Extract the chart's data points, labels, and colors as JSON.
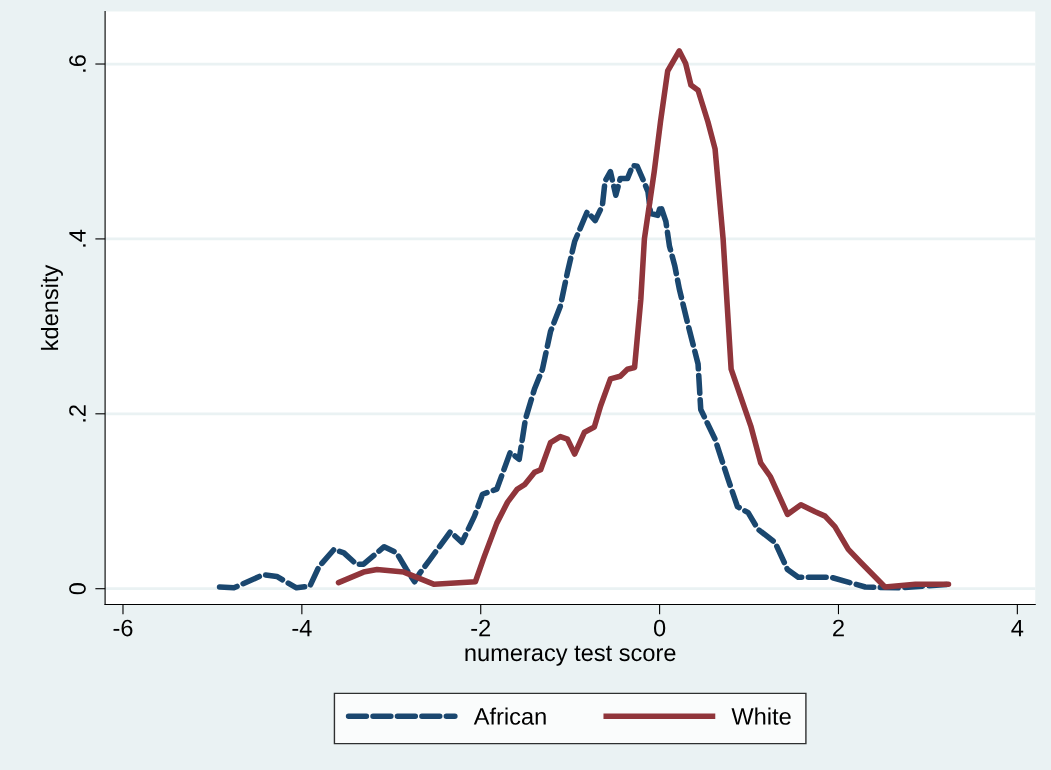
{
  "chart_data": {
    "type": "line",
    "xlabel": "numeracy test score",
    "ylabel": "kdensity",
    "xlim": [
      -6.2,
      4.2
    ],
    "xticks": [
      -6,
      -4,
      -2,
      0,
      2,
      4
    ],
    "ylim": [
      -0.018,
      0.66
    ],
    "yticks": [
      {
        "value": 0,
        "label": "0"
      },
      {
        "value": 0.2,
        "label": ".2"
      },
      {
        "value": 0.4,
        "label": ".4"
      },
      {
        "value": 0.6,
        "label": ".6"
      }
    ],
    "grid": "y",
    "legend": "bottom",
    "series": [
      {
        "name": "African",
        "color": "#1a476f",
        "line_style": "dashed",
        "x": [
          -4.92,
          -4.76,
          -4.43,
          -4.28,
          -4.06,
          -3.91,
          -3.81,
          -3.64,
          -3.53,
          -3.39,
          -3.31,
          -3.08,
          -2.94,
          -2.83,
          -2.74,
          -2.68,
          -2.57,
          -2.34,
          -2.21,
          -2.07,
          -1.98,
          -1.82,
          -1.67,
          -1.57,
          -1.5,
          -1.4,
          -1.31,
          -1.22,
          -1.11,
          -1.03,
          -0.95,
          -0.81,
          -0.72,
          -0.64,
          -0.61,
          -0.55,
          -0.49,
          -0.44,
          -0.36,
          -0.3,
          -0.25,
          -0.19,
          -0.13,
          -0.1,
          -0.02,
          0.01,
          0.07,
          0.11,
          0.17,
          0.22,
          0.31,
          0.43,
          0.46,
          0.62,
          0.76,
          0.87,
          0.99,
          1.1,
          1.29,
          1.43,
          1.55,
          1.92,
          2.3,
          2.67,
          3.23
        ],
        "values": [
          0.002,
          0.001,
          0.016,
          0.014,
          0.001,
          0.003,
          0.025,
          0.045,
          0.041,
          0.028,
          0.028,
          0.048,
          0.041,
          0.022,
          0.008,
          0.018,
          0.033,
          0.065,
          0.053,
          0.083,
          0.108,
          0.114,
          0.156,
          0.148,
          0.194,
          0.228,
          0.251,
          0.294,
          0.323,
          0.362,
          0.397,
          0.431,
          0.421,
          0.438,
          0.466,
          0.477,
          0.45,
          0.469,
          0.469,
          0.484,
          0.483,
          0.469,
          0.454,
          0.429,
          0.427,
          0.438,
          0.42,
          0.392,
          0.369,
          0.343,
          0.305,
          0.257,
          0.205,
          0.171,
          0.127,
          0.094,
          0.087,
          0.068,
          0.053,
          0.022,
          0.013,
          0.013,
          0.002,
          0.001,
          0.005
        ]
      },
      {
        "name": "White",
        "color": "#90353b",
        "line_style": "solid",
        "x": [
          -3.59,
          -3.31,
          -3.16,
          -2.86,
          -2.52,
          -2.06,
          -1.96,
          -1.82,
          -1.7,
          -1.59,
          -1.51,
          -1.4,
          -1.33,
          -1.22,
          -1.11,
          -1.03,
          -0.95,
          -0.84,
          -0.73,
          -0.66,
          -0.55,
          -0.44,
          -0.36,
          -0.28,
          -0.21,
          -0.17,
          -0.06,
          0.01,
          0.09,
          0.22,
          0.29,
          0.35,
          0.43,
          0.54,
          0.62,
          0.71,
          0.8,
          1.02,
          1.13,
          1.24,
          1.43,
          1.58,
          1.74,
          1.85,
          1.96,
          2.11,
          2.25,
          2.52,
          2.86,
          3.23
        ],
        "values": [
          0.007,
          0.019,
          0.022,
          0.019,
          0.005,
          0.008,
          0.037,
          0.075,
          0.099,
          0.114,
          0.119,
          0.133,
          0.136,
          0.167,
          0.174,
          0.171,
          0.154,
          0.179,
          0.185,
          0.209,
          0.24,
          0.243,
          0.251,
          0.253,
          0.331,
          0.4,
          0.477,
          0.534,
          0.592,
          0.615,
          0.601,
          0.576,
          0.57,
          0.534,
          0.503,
          0.4,
          0.251,
          0.186,
          0.144,
          0.128,
          0.085,
          0.096,
          0.088,
          0.083,
          0.071,
          0.045,
          0.03,
          0.002,
          0.005,
          0.005
        ]
      }
    ]
  }
}
